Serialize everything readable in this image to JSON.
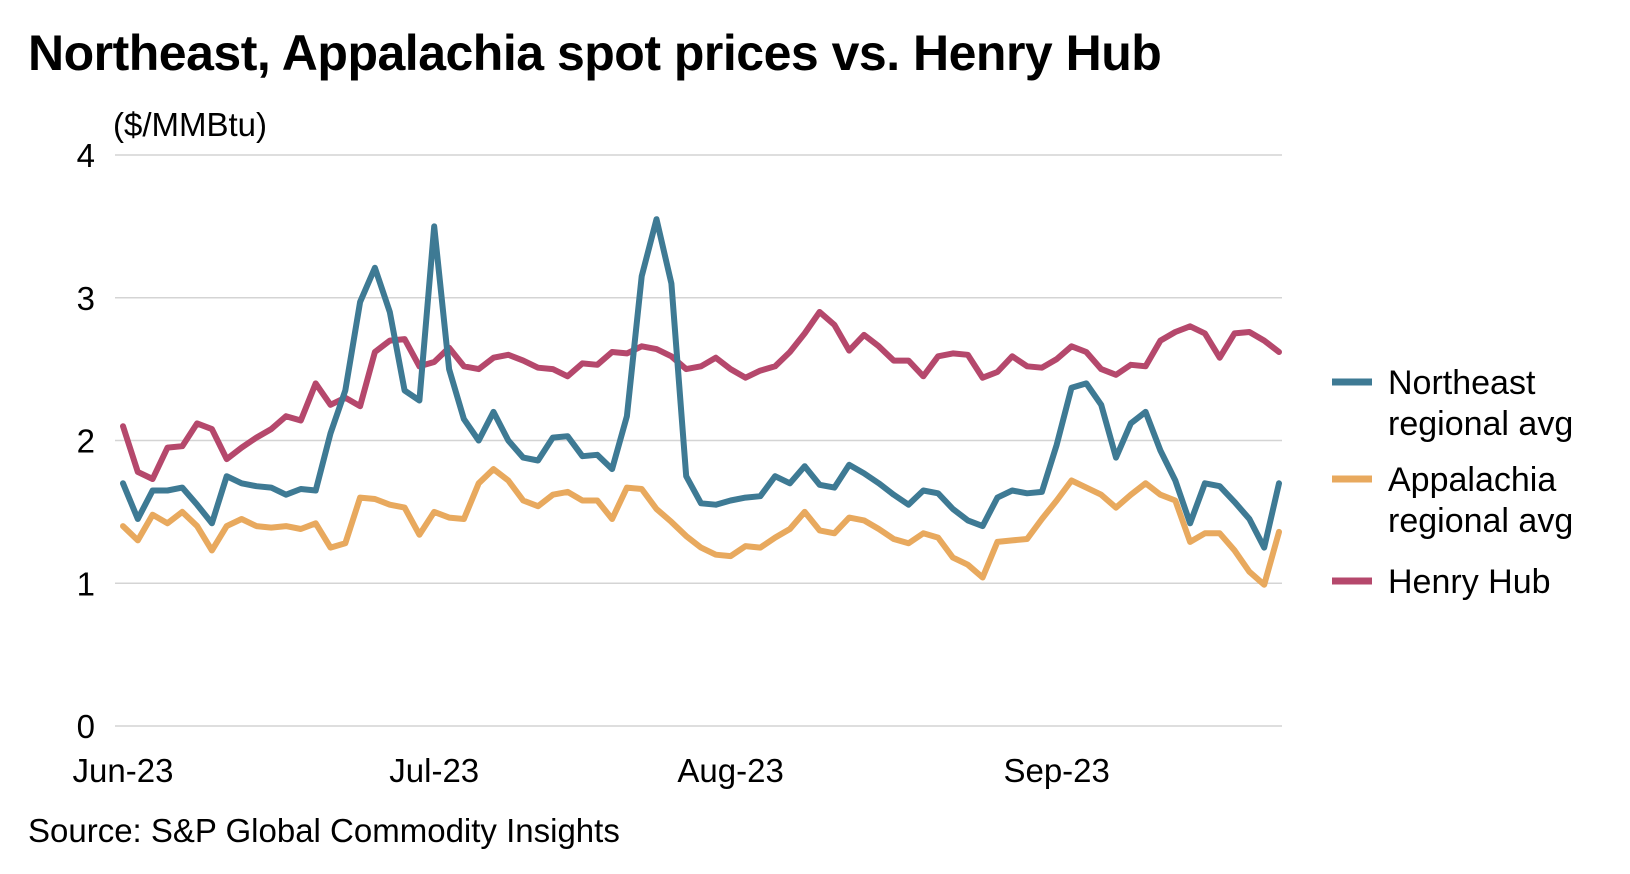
{
  "chart_data": {
    "type": "line",
    "title": "Northeast, Appalachia spot prices vs. Henry Hub",
    "ylabel": "($/MMBtu)",
    "xlabel": "",
    "ylim": [
      0,
      4
    ],
    "yticks": [
      "0",
      "1",
      "2",
      "3",
      "4"
    ],
    "grid": true,
    "legend_position": "right",
    "xtick_labels": [
      {
        "label": "Jun-23",
        "index": 0
      },
      {
        "label": "Jul-23",
        "index": 21
      },
      {
        "label": "Aug-23",
        "index": 41
      },
      {
        "label": "Sep-23",
        "index": 63
      }
    ],
    "series": [
      {
        "name": "Northeast regional avg",
        "legend_lines": [
          "Northeast",
          "regional avg"
        ],
        "color": "#3e7a94",
        "values": [
          1.7,
          1.45,
          1.65,
          1.65,
          1.67,
          1.55,
          1.42,
          1.75,
          1.7,
          1.68,
          1.67,
          1.62,
          1.66,
          1.65,
          2.05,
          2.35,
          2.97,
          3.21,
          2.9,
          2.35,
          2.28,
          3.5,
          2.5,
          2.15,
          2.0,
          2.2,
          2.0,
          1.88,
          1.86,
          2.02,
          2.03,
          1.89,
          1.9,
          1.8,
          2.17,
          3.15,
          3.55,
          3.1,
          1.75,
          1.56,
          1.55,
          1.58,
          1.6,
          1.61,
          1.75,
          1.7,
          1.82,
          1.69,
          1.67,
          1.83,
          1.77,
          1.7,
          1.62,
          1.55,
          1.65,
          1.63,
          1.52,
          1.44,
          1.4,
          1.6,
          1.65,
          1.63,
          1.64,
          1.97,
          2.37,
          2.4,
          2.25,
          1.88,
          2.12,
          2.2,
          1.93,
          1.72,
          1.42,
          1.7,
          1.68,
          1.57,
          1.45,
          1.25,
          1.7
        ]
      },
      {
        "name": "Appalachia regional avg",
        "legend_lines": [
          "Appalachia",
          "regional avg"
        ],
        "color": "#e8a95e",
        "values": [
          1.4,
          1.3,
          1.48,
          1.42,
          1.5,
          1.4,
          1.23,
          1.4,
          1.45,
          1.4,
          1.39,
          1.4,
          1.38,
          1.42,
          1.25,
          1.28,
          1.6,
          1.59,
          1.55,
          1.53,
          1.34,
          1.5,
          1.46,
          1.45,
          1.7,
          1.8,
          1.72,
          1.58,
          1.54,
          1.62,
          1.64,
          1.58,
          1.58,
          1.45,
          1.67,
          1.66,
          1.52,
          1.43,
          1.33,
          1.25,
          1.2,
          1.19,
          1.26,
          1.25,
          1.32,
          1.38,
          1.5,
          1.37,
          1.35,
          1.46,
          1.44,
          1.38,
          1.31,
          1.28,
          1.35,
          1.32,
          1.18,
          1.13,
          1.04,
          1.29,
          1.3,
          1.31,
          1.45,
          1.58,
          1.72,
          1.67,
          1.62,
          1.53,
          1.62,
          1.7,
          1.62,
          1.58,
          1.29,
          1.35,
          1.35,
          1.23,
          1.08,
          0.99,
          1.36
        ]
      },
      {
        "name": "Henry Hub",
        "legend_lines": [
          "Henry Hub"
        ],
        "color": "#b5486c",
        "values": [
          2.1,
          1.78,
          1.73,
          1.95,
          1.96,
          2.12,
          2.08,
          1.87,
          1.95,
          2.02,
          2.08,
          2.17,
          2.14,
          2.4,
          2.25,
          2.3,
          2.24,
          2.62,
          2.7,
          2.71,
          2.52,
          2.55,
          2.65,
          2.52,
          2.5,
          2.58,
          2.6,
          2.56,
          2.51,
          2.5,
          2.45,
          2.54,
          2.53,
          2.62,
          2.61,
          2.66,
          2.64,
          2.59,
          2.5,
          2.52,
          2.58,
          2.5,
          2.44,
          2.49,
          2.52,
          2.62,
          2.75,
          2.9,
          2.81,
          2.63,
          2.74,
          2.66,
          2.56,
          2.56,
          2.45,
          2.59,
          2.61,
          2.6,
          2.44,
          2.48,
          2.59,
          2.52,
          2.51,
          2.57,
          2.66,
          2.62,
          2.5,
          2.46,
          2.53,
          2.52,
          2.7,
          2.76,
          2.8,
          2.75,
          2.58,
          2.75,
          2.76,
          2.7,
          2.62
        ]
      }
    ],
    "source": "Source: S&P Global Commodity Insights"
  }
}
